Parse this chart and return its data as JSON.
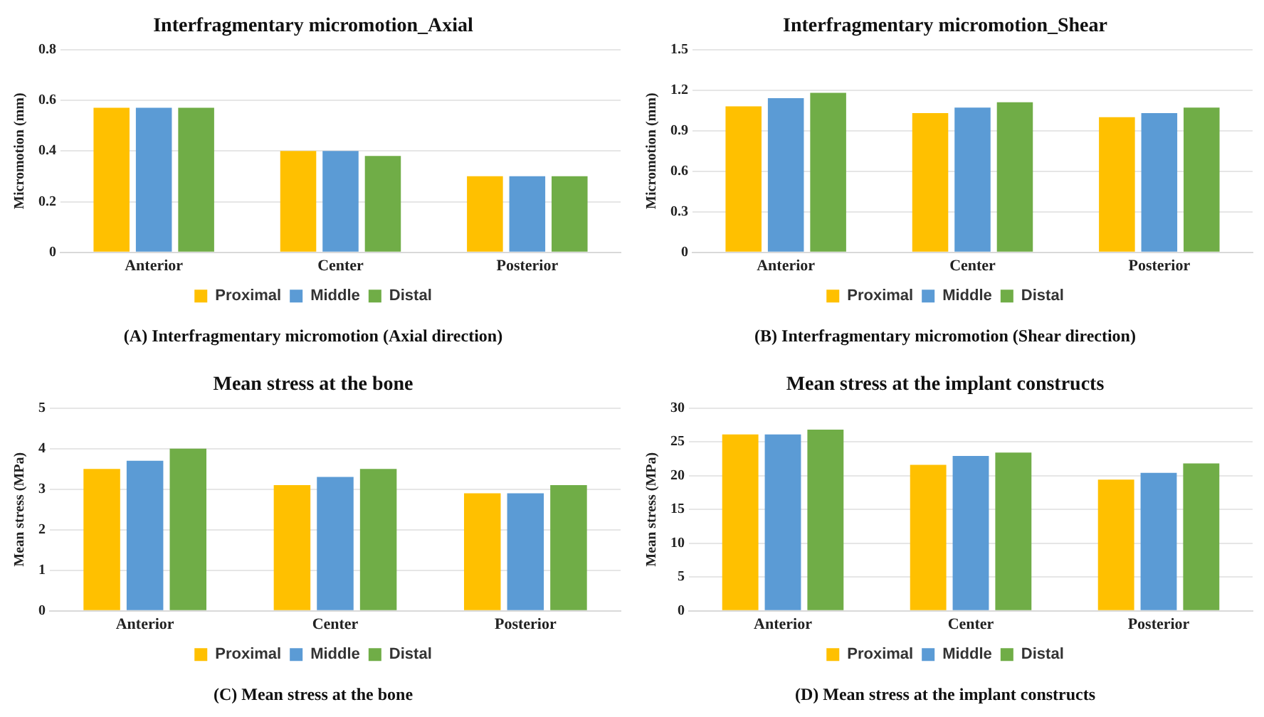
{
  "chart_data": [
    {
      "type": "bar",
      "title": "Interfragmentary micromotion_Axial",
      "ylabel": "Micromotion (mm)",
      "categories": [
        "Anterior",
        "Center",
        "Posterior"
      ],
      "series": [
        {
          "name": "Proximal",
          "color": "#ffc000",
          "values": [
            0.57,
            0.4,
            0.3
          ]
        },
        {
          "name": "Middle",
          "color": "#5b9bd5",
          "values": [
            0.57,
            0.4,
            0.3
          ]
        },
        {
          "name": "Distal",
          "color": "#70ad47",
          "values": [
            0.57,
            0.38,
            0.3
          ]
        }
      ],
      "ylim": [
        0,
        0.8
      ],
      "yticks": [
        0,
        0.2,
        0.4,
        0.6,
        0.8
      ],
      "grid": "y",
      "legend": "bottom",
      "annotations": [
        "(A) Interfragmentary micromotion (Axial direction)"
      ]
    },
    {
      "type": "bar",
      "title": "Interfragmentary micromotion_Shear",
      "ylabel": "Micromotion (mm)",
      "categories": [
        "Anterior",
        "Center",
        "Posterior"
      ],
      "series": [
        {
          "name": "Proximal",
          "color": "#ffc000",
          "values": [
            1.08,
            1.03,
            1.0
          ]
        },
        {
          "name": "Middle",
          "color": "#5b9bd5",
          "values": [
            1.14,
            1.07,
            1.03
          ]
        },
        {
          "name": "Distal",
          "color": "#70ad47",
          "values": [
            1.18,
            1.11,
            1.07
          ]
        }
      ],
      "ylim": [
        0,
        1.5
      ],
      "yticks": [
        0,
        0.3,
        0.6,
        0.9,
        1.2,
        1.5
      ],
      "grid": "y",
      "legend": "bottom",
      "annotations": [
        "(B) Interfragmentary micromotion (Shear direction)"
      ]
    },
    {
      "type": "bar",
      "title": "Mean stress at the bone",
      "ylabel": "Mean stress (MPa)",
      "categories": [
        "Anterior",
        "Center",
        "Posterior"
      ],
      "series": [
        {
          "name": "Proximal",
          "color": "#ffc000",
          "values": [
            3.5,
            3.1,
            2.9
          ]
        },
        {
          "name": "Middle",
          "color": "#5b9bd5",
          "values": [
            3.7,
            3.3,
            2.9
          ]
        },
        {
          "name": "Distal",
          "color": "#70ad47",
          "values": [
            4.0,
            3.5,
            3.1
          ]
        }
      ],
      "ylim": [
        0,
        5
      ],
      "yticks": [
        0,
        1,
        2,
        3,
        4,
        5
      ],
      "grid": "y",
      "legend": "bottom",
      "annotations": [
        "(C) Mean stress at the bone"
      ]
    },
    {
      "type": "bar",
      "title": "Mean stress at the implant constructs",
      "ylabel": "Mean stress (MPa)",
      "categories": [
        "Anterior",
        "Center",
        "Posterior"
      ],
      "series": [
        {
          "name": "Proximal",
          "color": "#ffc000",
          "values": [
            26.1,
            21.6,
            19.4
          ]
        },
        {
          "name": "Middle",
          "color": "#5b9bd5",
          "values": [
            26.1,
            22.9,
            20.4
          ]
        },
        {
          "name": "Distal",
          "color": "#70ad47",
          "values": [
            26.8,
            23.4,
            21.8
          ]
        }
      ],
      "ylim": [
        0,
        30
      ],
      "yticks": [
        0,
        5,
        10,
        15,
        20,
        25,
        30
      ],
      "grid": "y",
      "legend": "bottom",
      "annotations": [
        "(D) Mean stress at the implant constructs"
      ]
    }
  ]
}
